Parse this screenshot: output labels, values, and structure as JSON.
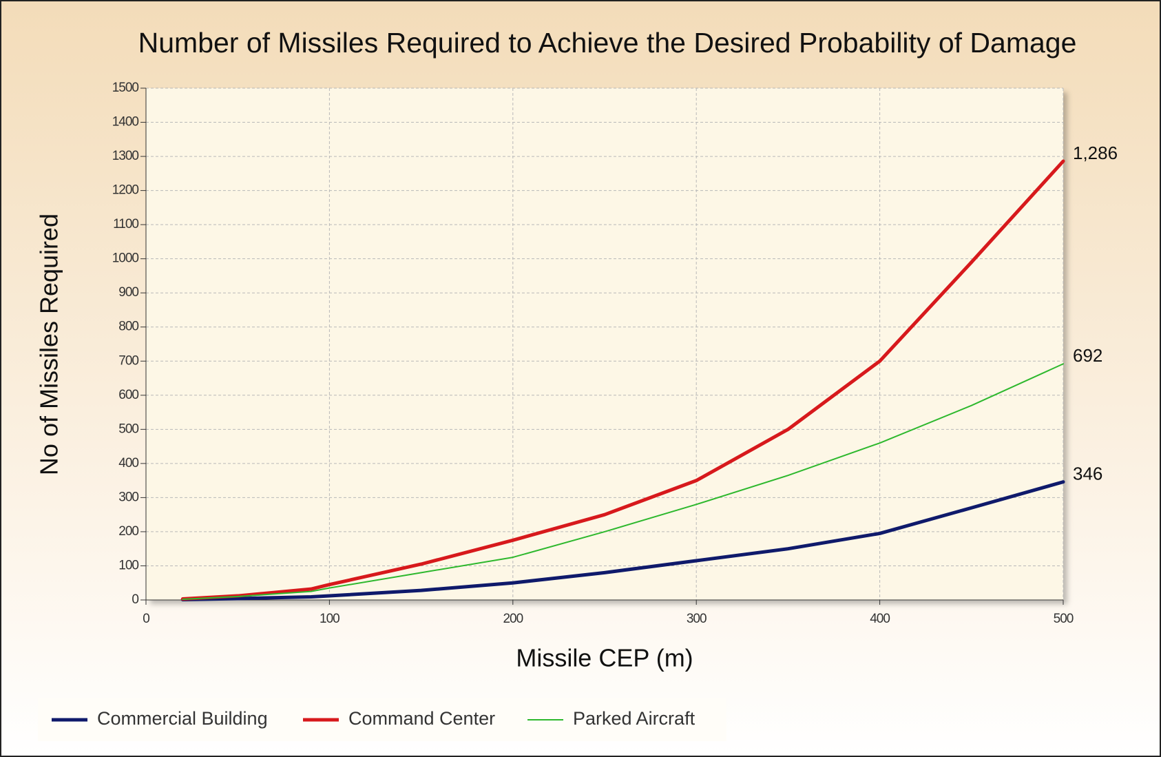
{
  "chart_data": {
    "type": "line",
    "title": "Number of Missiles Required to Achieve the Desired Probability of Damage",
    "x_label": "Missile CEP (m)",
    "y_label": "No of Missiles Required",
    "x": [
      20,
      50,
      90,
      100,
      150,
      200,
      250,
      300,
      350,
      400,
      450,
      500
    ],
    "series": [
      {
        "name": "Commercial Building",
        "color": "#0f1a6b",
        "width": 5,
        "values": [
          1,
          4,
          9,
          12,
          28,
          50,
          80,
          115,
          150,
          195,
          270,
          346
        ],
        "value_labels": [
          null,
          null,
          null,
          null,
          null,
          null,
          null,
          null,
          null,
          null,
          null,
          "346"
        ]
      },
      {
        "name": "Command Center",
        "color": "#d7191c",
        "width": 5,
        "values": [
          3,
          12,
          32,
          45,
          105,
          175,
          250,
          350,
          500,
          700,
          990,
          1286
        ],
        "value_labels": [
          null,
          null,
          null,
          null,
          null,
          null,
          null,
          null,
          null,
          null,
          null,
          "1,286"
        ]
      },
      {
        "name": "Parked Aircraft",
        "color": "#2db82d",
        "width": 2,
        "values": [
          2,
          10,
          25,
          35,
          80,
          125,
          200,
          280,
          365,
          460,
          570,
          692
        ],
        "value_labels": [
          null,
          null,
          null,
          null,
          null,
          null,
          null,
          null,
          null,
          null,
          null,
          "692"
        ]
      }
    ],
    "xlim": [
      0,
      500
    ],
    "xticks": [
      0,
      100,
      200,
      300,
      400,
      500
    ],
    "ylim": [
      0,
      1500
    ],
    "yticks": [
      0,
      100,
      200,
      300,
      400,
      500,
      600,
      700,
      800,
      900,
      1000,
      1100,
      1200,
      1300,
      1400,
      1500
    ],
    "grid": true,
    "legend": "bottom-left"
  }
}
